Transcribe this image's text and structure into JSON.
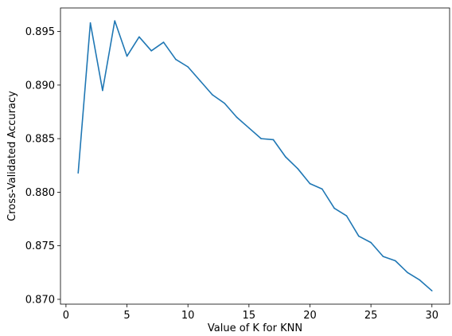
{
  "chart_data": {
    "type": "line",
    "title": "",
    "xlabel": "Value of K for KNN",
    "ylabel": "Cross-Validated Accuracy",
    "xlim": [
      -0.45,
      31.45
    ],
    "ylim": [
      0.86955,
      0.8972
    ],
    "x_ticks": [
      0,
      5,
      10,
      15,
      20,
      25,
      30
    ],
    "x_tick_labels": [
      "0",
      "5",
      "10",
      "15",
      "20",
      "25",
      "30"
    ],
    "y_ticks": [
      0.87,
      0.875,
      0.88,
      0.885,
      0.89,
      0.895
    ],
    "y_tick_labels": [
      "0.870",
      "0.875",
      "0.880",
      "0.885",
      "0.890",
      "0.895"
    ],
    "grid": false,
    "legend": false,
    "series": [
      {
        "color": "#1f77b4",
        "x": [
          1,
          2,
          3,
          4,
          5,
          6,
          7,
          8,
          9,
          10,
          11,
          12,
          13,
          14,
          15,
          16,
          17,
          18,
          19,
          20,
          21,
          22,
          23,
          24,
          25,
          26,
          27,
          28,
          29,
          30
        ],
        "values": [
          0.8818,
          0.8958,
          0.8895,
          0.896,
          0.8927,
          0.8945,
          0.8932,
          0.894,
          0.8924,
          0.8917,
          0.8904,
          0.8891,
          0.8883,
          0.887,
          0.886,
          0.885,
          0.8849,
          0.8833,
          0.8822,
          0.8808,
          0.8803,
          0.8785,
          0.8778,
          0.8759,
          0.8753,
          0.874,
          0.8736,
          0.8725,
          0.8718,
          0.8708
        ]
      }
    ]
  }
}
